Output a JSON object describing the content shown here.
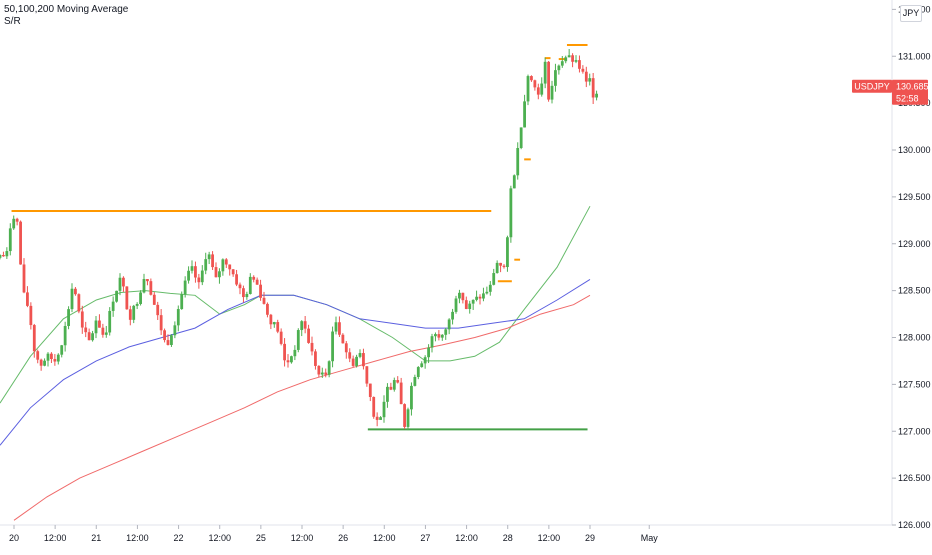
{
  "legend": {
    "line1": "50,100,200 Moving Average",
    "line2": "S/R"
  },
  "currency_button": "JPY",
  "price_badge": {
    "symbol": "USDJPY",
    "price": "130.685",
    "countdown": "52:58"
  },
  "colors": {
    "bull": "#26a69a",
    "bull_candle": "#4caf50",
    "bear": "#ef5350",
    "ma50": "#66bb6a",
    "ma100": "#5b5fe0",
    "ma200": "#f06a6a",
    "resistance": "#ff9800",
    "support": "#43a047",
    "badge": "#ef5350"
  },
  "chart_data": {
    "type": "candlestick",
    "symbol": "USDJPY",
    "y_axis": {
      "range": [
        126.0,
        131.6
      ],
      "ticks": [
        "126.000",
        "126.500",
        "127.000",
        "127.500",
        "128.000",
        "128.500",
        "129.000",
        "129.500",
        "130.000",
        "130.500",
        "131.000",
        "131.500"
      ]
    },
    "x_axis": {
      "range": [
        19.83,
        30.67
      ],
      "ticks": [
        {
          "label": "20",
          "t": 20.0
        },
        {
          "label": "12:00",
          "t": 20.5
        },
        {
          "label": "21",
          "t": 21.0
        },
        {
          "label": "12:00",
          "t": 21.5
        },
        {
          "label": "22",
          "t": 22.0
        },
        {
          "label": "12:00",
          "t": 22.5
        },
        {
          "label": "25",
          "t": 23.0
        },
        {
          "label": "12:00",
          "t": 23.5
        },
        {
          "label": "26",
          "t": 24.0
        },
        {
          "label": "12:00",
          "t": 24.5
        },
        {
          "label": "27",
          "t": 25.0
        },
        {
          "label": "12:00",
          "t": 25.5
        },
        {
          "label": "28",
          "t": 26.0
        },
        {
          "label": "12:00",
          "t": 26.5
        },
        {
          "label": "29",
          "t": 27.0
        },
        {
          "label": "May",
          "t": 27.72
        }
      ]
    },
    "anchors": [
      [
        19.83,
        128.85
      ],
      [
        19.93,
        128.9
      ],
      [
        19.97,
        129.35
      ],
      [
        20.05,
        129.2
      ],
      [
        20.1,
        128.5
      ],
      [
        20.18,
        128.3
      ],
      [
        20.25,
        127.85
      ],
      [
        20.32,
        127.7
      ],
      [
        20.4,
        127.8
      ],
      [
        20.5,
        127.75
      ],
      [
        20.6,
        128.0
      ],
      [
        20.72,
        128.6
      ],
      [
        20.82,
        128.1
      ],
      [
        20.92,
        127.95
      ],
      [
        21.0,
        128.2
      ],
      [
        21.1,
        128.0
      ],
      [
        21.2,
        128.4
      ],
      [
        21.3,
        128.65
      ],
      [
        21.4,
        128.2
      ],
      [
        21.5,
        128.4
      ],
      [
        21.6,
        128.7
      ],
      [
        21.72,
        128.3
      ],
      [
        21.85,
        127.9
      ],
      [
        21.95,
        128.15
      ],
      [
        22.05,
        128.5
      ],
      [
        22.15,
        128.75
      ],
      [
        22.25,
        128.55
      ],
      [
        22.35,
        128.95
      ],
      [
        22.45,
        128.6
      ],
      [
        22.55,
        128.85
      ],
      [
        22.65,
        128.7
      ],
      [
        22.8,
        128.4
      ],
      [
        22.9,
        128.7
      ],
      [
        23.0,
        128.45
      ],
      [
        23.1,
        128.2
      ],
      [
        23.2,
        128.1
      ],
      [
        23.3,
        127.7
      ],
      [
        23.4,
        127.85
      ],
      [
        23.5,
        128.2
      ],
      [
        23.6,
        127.9
      ],
      [
        23.7,
        127.6
      ],
      [
        23.8,
        127.6
      ],
      [
        23.9,
        128.2
      ],
      [
        24.0,
        127.95
      ],
      [
        24.1,
        127.7
      ],
      [
        24.2,
        127.85
      ],
      [
        24.3,
        127.5
      ],
      [
        24.38,
        127.15
      ],
      [
        24.45,
        127.1
      ],
      [
        24.55,
        127.5
      ],
      [
        24.65,
        127.55
      ],
      [
        24.7,
        127.3
      ],
      [
        24.75,
        127.05
      ],
      [
        24.82,
        127.45
      ],
      [
        24.9,
        127.7
      ],
      [
        25.0,
        127.8
      ],
      [
        25.1,
        128.05
      ],
      [
        25.2,
        128.0
      ],
      [
        25.3,
        128.2
      ],
      [
        25.4,
        128.55
      ],
      [
        25.5,
        128.3
      ],
      [
        25.6,
        128.4
      ],
      [
        25.7,
        128.45
      ],
      [
        25.8,
        128.55
      ],
      [
        25.85,
        128.8
      ],
      [
        25.92,
        128.8
      ],
      [
        25.98,
        128.7
      ],
      [
        26.02,
        129.5
      ],
      [
        26.1,
        129.85
      ],
      [
        26.15,
        130.2
      ],
      [
        26.2,
        130.5
      ],
      [
        26.25,
        130.85
      ],
      [
        26.3,
        130.7
      ],
      [
        26.4,
        130.6
      ],
      [
        26.45,
        130.95
      ],
      [
        26.5,
        130.55
      ],
      [
        26.6,
        130.9
      ],
      [
        26.7,
        131.0
      ],
      [
        26.8,
        130.95
      ],
      [
        26.9,
        130.85
      ],
      [
        26.95,
        130.7
      ],
      [
        27.0,
        130.75
      ],
      [
        27.05,
        130.55
      ],
      [
        27.1,
        130.685
      ]
    ],
    "moving_averages": [
      {
        "period": 50,
        "color_key": "ma50",
        "points": [
          [
            19.83,
            127.3
          ],
          [
            20.2,
            127.8
          ],
          [
            20.6,
            128.2
          ],
          [
            21.0,
            128.4
          ],
          [
            21.3,
            128.48
          ],
          [
            21.6,
            128.5
          ],
          [
            21.9,
            128.47
          ],
          [
            22.2,
            128.45
          ],
          [
            22.5,
            128.25
          ],
          [
            22.8,
            128.35
          ],
          [
            23.0,
            128.45
          ],
          [
            23.4,
            128.45
          ],
          [
            23.8,
            128.35
          ],
          [
            24.2,
            128.2
          ],
          [
            24.6,
            128.0
          ],
          [
            25.0,
            127.75
          ],
          [
            25.3,
            127.75
          ],
          [
            25.6,
            127.8
          ],
          [
            25.9,
            127.95
          ],
          [
            26.2,
            128.3
          ],
          [
            26.6,
            128.75
          ],
          [
            27.0,
            129.4
          ]
        ]
      },
      {
        "period": 100,
        "color_key": "ma100",
        "points": [
          [
            19.83,
            126.85
          ],
          [
            20.2,
            127.25
          ],
          [
            20.6,
            127.55
          ],
          [
            21.0,
            127.75
          ],
          [
            21.4,
            127.9
          ],
          [
            21.8,
            128.0
          ],
          [
            22.2,
            128.1
          ],
          [
            22.6,
            128.3
          ],
          [
            23.0,
            128.45
          ],
          [
            23.4,
            128.45
          ],
          [
            23.8,
            128.35
          ],
          [
            24.2,
            128.2
          ],
          [
            24.6,
            128.15
          ],
          [
            25.0,
            128.1
          ],
          [
            25.4,
            128.1
          ],
          [
            25.8,
            128.15
          ],
          [
            26.2,
            128.2
          ],
          [
            26.6,
            128.4
          ],
          [
            27.0,
            128.62
          ]
        ]
      },
      {
        "period": 200,
        "color_key": "ma200",
        "points": [
          [
            20.0,
            126.05
          ],
          [
            20.4,
            126.3
          ],
          [
            20.8,
            126.5
          ],
          [
            21.2,
            126.65
          ],
          [
            21.6,
            126.8
          ],
          [
            22.0,
            126.95
          ],
          [
            22.4,
            127.1
          ],
          [
            22.8,
            127.25
          ],
          [
            23.2,
            127.42
          ],
          [
            23.6,
            127.55
          ],
          [
            24.0,
            127.65
          ],
          [
            24.4,
            127.75
          ],
          [
            24.8,
            127.85
          ],
          [
            25.2,
            127.92
          ],
          [
            25.6,
            128.0
          ],
          [
            26.0,
            128.1
          ],
          [
            26.4,
            128.25
          ],
          [
            26.8,
            128.35
          ],
          [
            27.0,
            128.45
          ]
        ]
      }
    ],
    "levels": [
      {
        "kind": "resistance",
        "price": 129.35,
        "from": 19.97,
        "to": 25.8
      },
      {
        "kind": "resistance",
        "price": 128.6,
        "from": 25.88,
        "to": 26.05
      },
      {
        "kind": "resistance",
        "price": 128.83,
        "from": 26.08,
        "to": 26.15
      },
      {
        "kind": "resistance",
        "price": 129.9,
        "from": 26.2,
        "to": 26.28
      },
      {
        "kind": "resistance",
        "price": 130.98,
        "from": 26.45,
        "to": 26.52
      },
      {
        "kind": "resistance",
        "price": 130.97,
        "from": 26.62,
        "to": 26.72
      },
      {
        "kind": "resistance",
        "price": 131.12,
        "from": 26.72,
        "to": 26.97
      },
      {
        "kind": "support",
        "price": 127.02,
        "from": 24.3,
        "to": 26.97
      }
    ]
  }
}
